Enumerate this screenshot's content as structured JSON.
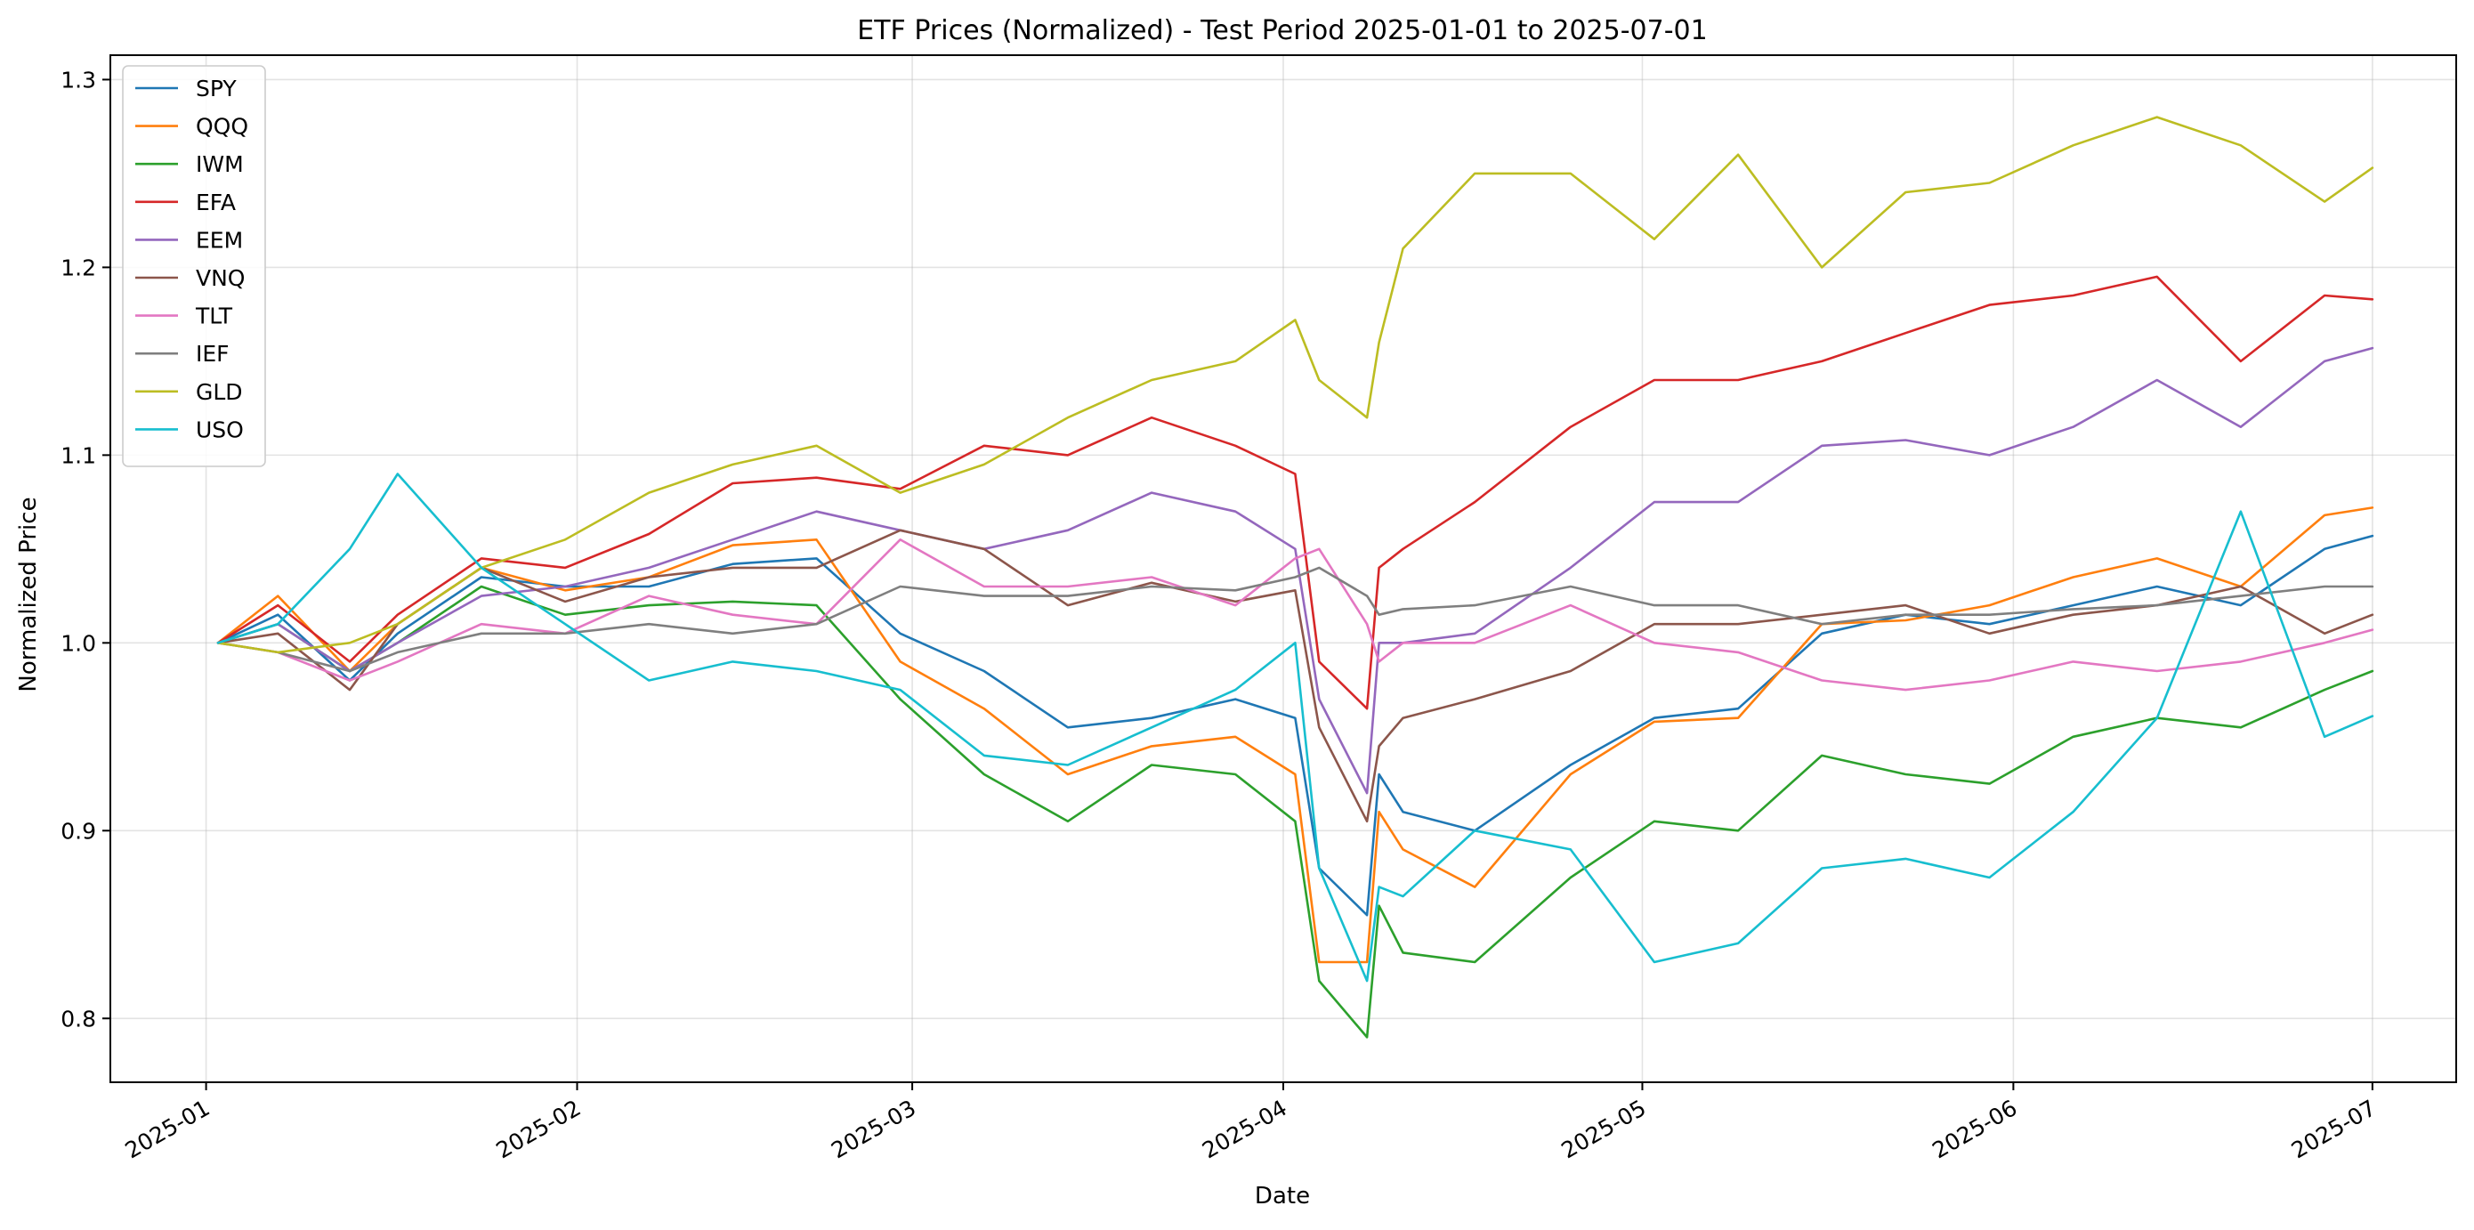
{
  "chart_data": {
    "type": "line",
    "title": "ETF Prices (Normalized) - Test Period 2025-01-01 to 2025-07-01",
    "xlabel": "Date",
    "ylabel": "Normalized Price",
    "x_domain": [
      "2024-12-24",
      "2025-07-08"
    ],
    "ylim": [
      0.766,
      1.313
    ],
    "grid": true,
    "legend_position": "top-left",
    "x_ticks": [
      {
        "date": "2025-01-01",
        "label": "2025-01"
      },
      {
        "date": "2025-02-01",
        "label": "2025-02"
      },
      {
        "date": "2025-03-01",
        "label": "2025-03"
      },
      {
        "date": "2025-04-01",
        "label": "2025-04"
      },
      {
        "date": "2025-05-01",
        "label": "2025-05"
      },
      {
        "date": "2025-06-01",
        "label": "2025-06"
      },
      {
        "date": "2025-07-01",
        "label": "2025-07"
      }
    ],
    "y_ticks": [
      {
        "value": 0.8,
        "label": "0.8"
      },
      {
        "value": 0.9,
        "label": "0.9"
      },
      {
        "value": 1.0,
        "label": "1.0"
      },
      {
        "value": 1.1,
        "label": "1.1"
      },
      {
        "value": 1.2,
        "label": "1.2"
      },
      {
        "value": 1.3,
        "label": "1.3"
      }
    ],
    "dates": [
      "2025-01-02",
      "2025-01-07",
      "2025-01-13",
      "2025-01-17",
      "2025-01-24",
      "2025-01-31",
      "2025-02-07",
      "2025-02-14",
      "2025-02-21",
      "2025-02-28",
      "2025-03-07",
      "2025-03-14",
      "2025-03-21",
      "2025-03-28",
      "2025-04-02",
      "2025-04-04",
      "2025-04-08",
      "2025-04-09",
      "2025-04-11",
      "2025-04-17",
      "2025-04-25",
      "2025-05-02",
      "2025-05-09",
      "2025-05-16",
      "2025-05-23",
      "2025-05-30",
      "2025-06-06",
      "2025-06-13",
      "2025-06-20",
      "2025-06-27",
      "2025-07-01"
    ],
    "series": [
      {
        "name": "SPY",
        "color": "#1f77b4",
        "values": [
          1.0,
          1.015,
          0.98,
          1.005,
          1.035,
          1.03,
          1.03,
          1.042,
          1.045,
          1.005,
          0.985,
          0.955,
          0.96,
          0.97,
          0.96,
          0.88,
          0.855,
          0.93,
          0.91,
          0.9,
          0.935,
          0.96,
          0.965,
          1.005,
          1.015,
          1.01,
          1.02,
          1.03,
          1.02,
          1.05,
          1.057
        ]
      },
      {
        "name": "QQQ",
        "color": "#ff7f0e",
        "values": [
          1.0,
          1.025,
          0.985,
          1.01,
          1.04,
          1.028,
          1.035,
          1.052,
          1.055,
          0.99,
          0.965,
          0.93,
          0.945,
          0.95,
          0.93,
          0.83,
          0.83,
          0.91,
          0.89,
          0.87,
          0.93,
          0.958,
          0.96,
          1.01,
          1.012,
          1.02,
          1.035,
          1.045,
          1.03,
          1.068,
          1.072
        ]
      },
      {
        "name": "IWM",
        "color": "#2ca02c",
        "values": [
          1.0,
          1.01,
          0.985,
          1.0,
          1.03,
          1.015,
          1.02,
          1.022,
          1.02,
          0.97,
          0.93,
          0.905,
          0.935,
          0.93,
          0.905,
          0.82,
          0.79,
          0.86,
          0.835,
          0.83,
          0.875,
          0.905,
          0.9,
          0.94,
          0.93,
          0.925,
          0.95,
          0.96,
          0.955,
          0.975,
          0.985
        ]
      },
      {
        "name": "EFA",
        "color": "#d62728",
        "values": [
          1.0,
          1.02,
          0.99,
          1.015,
          1.045,
          1.04,
          1.058,
          1.085,
          1.088,
          1.082,
          1.105,
          1.1,
          1.12,
          1.105,
          1.09,
          0.99,
          0.965,
          1.04,
          1.05,
          1.075,
          1.115,
          1.14,
          1.14,
          1.15,
          1.165,
          1.18,
          1.185,
          1.195,
          1.15,
          1.185,
          1.183
        ]
      },
      {
        "name": "EEM",
        "color": "#9467bd",
        "values": [
          1.0,
          1.01,
          0.985,
          1.0,
          1.025,
          1.03,
          1.04,
          1.055,
          1.07,
          1.06,
          1.05,
          1.06,
          1.08,
          1.07,
          1.05,
          0.97,
          0.92,
          1.0,
          1.0,
          1.005,
          1.04,
          1.075,
          1.075,
          1.105,
          1.108,
          1.1,
          1.115,
          1.14,
          1.115,
          1.15,
          1.157
        ]
      },
      {
        "name": "VNQ",
        "color": "#8c564b",
        "values": [
          1.0,
          1.005,
          0.975,
          1.01,
          1.04,
          1.022,
          1.035,
          1.04,
          1.04,
          1.06,
          1.05,
          1.02,
          1.032,
          1.022,
          1.028,
          0.955,
          0.905,
          0.945,
          0.96,
          0.97,
          0.985,
          1.01,
          1.01,
          1.015,
          1.02,
          1.005,
          1.015,
          1.02,
          1.03,
          1.005,
          1.015
        ]
      },
      {
        "name": "TLT",
        "color": "#e377c2",
        "values": [
          1.0,
          0.995,
          0.98,
          0.99,
          1.01,
          1.005,
          1.025,
          1.015,
          1.01,
          1.055,
          1.03,
          1.03,
          1.035,
          1.02,
          1.045,
          1.05,
          1.01,
          0.99,
          1.0,
          1.0,
          1.02,
          1.0,
          0.995,
          0.98,
          0.975,
          0.98,
          0.99,
          0.985,
          0.99,
          1.0,
          1.007
        ]
      },
      {
        "name": "IEF",
        "color": "#7f7f7f",
        "values": [
          1.0,
          0.995,
          0.985,
          0.995,
          1.005,
          1.005,
          1.01,
          1.005,
          1.01,
          1.03,
          1.025,
          1.025,
          1.03,
          1.028,
          1.035,
          1.04,
          1.025,
          1.015,
          1.018,
          1.02,
          1.03,
          1.02,
          1.02,
          1.01,
          1.015,
          1.015,
          1.018,
          1.02,
          1.025,
          1.03,
          1.03
        ]
      },
      {
        "name": "GLD",
        "color": "#bcbd22",
        "values": [
          1.0,
          0.995,
          1.0,
          1.01,
          1.04,
          1.055,
          1.08,
          1.095,
          1.105,
          1.08,
          1.095,
          1.12,
          1.14,
          1.15,
          1.172,
          1.14,
          1.12,
          1.16,
          1.21,
          1.25,
          1.25,
          1.215,
          1.26,
          1.2,
          1.24,
          1.245,
          1.265,
          1.28,
          1.265,
          1.235,
          1.253
        ]
      },
      {
        "name": "USO",
        "color": "#17becf",
        "values": [
          1.0,
          1.01,
          1.05,
          1.09,
          1.04,
          1.01,
          0.98,
          0.99,
          0.985,
          0.975,
          0.94,
          0.935,
          0.955,
          0.975,
          1.0,
          0.88,
          0.82,
          0.87,
          0.865,
          0.9,
          0.89,
          0.83,
          0.84,
          0.88,
          0.885,
          0.875,
          0.91,
          0.96,
          1.07,
          0.95,
          0.961
        ]
      }
    ]
  }
}
